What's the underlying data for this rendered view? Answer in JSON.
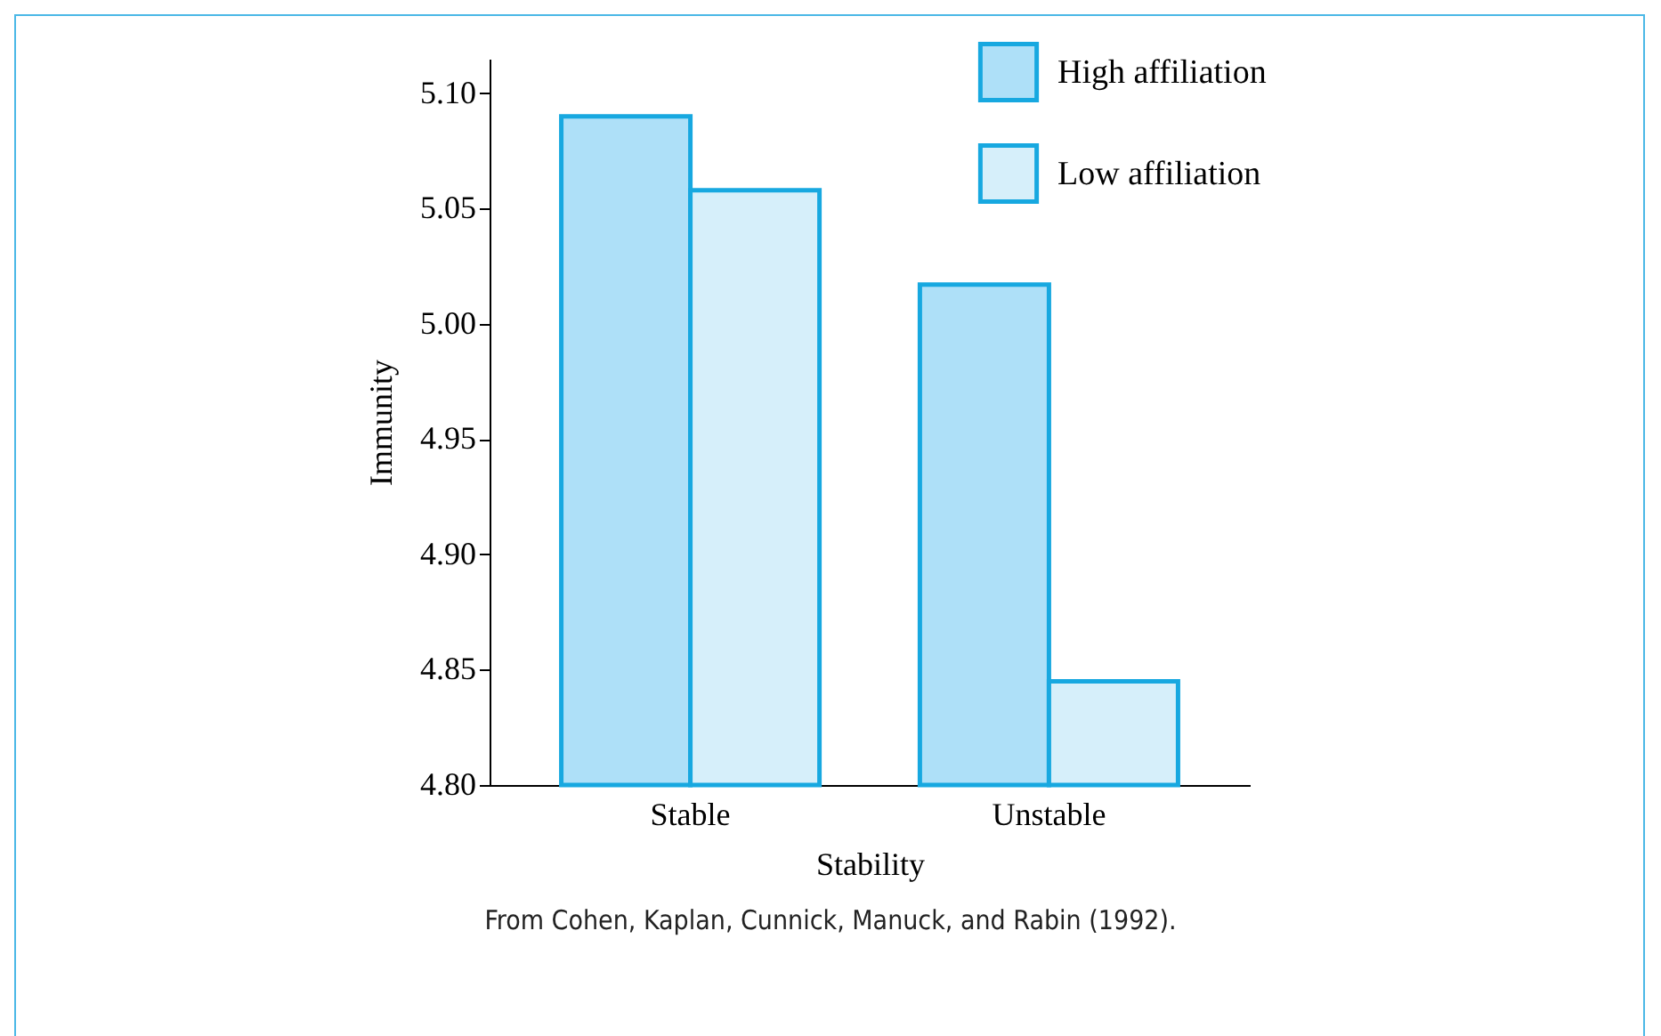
{
  "chart_data": {
    "type": "bar",
    "xlabel": "Stability",
    "ylabel": "Immunity",
    "categories": [
      "Stable",
      "Unstable"
    ],
    "series": [
      {
        "name": "High affiliation",
        "color": "#aee0f8",
        "values": [
          5.09,
          5.017
        ]
      },
      {
        "name": "Low affiliation",
        "color": "#d6effa",
        "values": [
          5.058,
          4.845
        ]
      }
    ],
    "ylim": [
      4.8,
      5.115
    ],
    "yticks": [
      {
        "value": 4.8,
        "label": "4.80"
      },
      {
        "value": 4.85,
        "label": "4.85"
      },
      {
        "value": 4.9,
        "label": "4.90"
      },
      {
        "value": 4.95,
        "label": "4.95"
      },
      {
        "value": 5.0,
        "label": "5.00"
      },
      {
        "value": 5.05,
        "label": "5.05"
      },
      {
        "value": 5.1,
        "label": "5.10"
      }
    ],
    "grid": false,
    "legend": "top right",
    "annotations": [
      "From Cohen, Kaplan, Cunnick, Manuck, and Rabin (1992)."
    ]
  }
}
